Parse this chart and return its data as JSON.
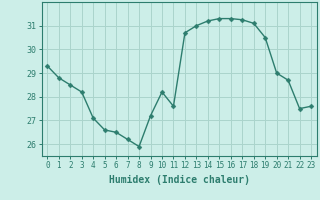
{
  "x": [
    0,
    1,
    2,
    3,
    4,
    5,
    6,
    7,
    8,
    9,
    10,
    11,
    12,
    13,
    14,
    15,
    16,
    17,
    18,
    19,
    20,
    21,
    22,
    23
  ],
  "y": [
    29.3,
    28.8,
    28.5,
    28.2,
    27.1,
    26.6,
    26.5,
    26.2,
    25.9,
    27.2,
    28.2,
    27.6,
    30.7,
    31.0,
    31.2,
    31.3,
    31.3,
    31.25,
    31.1,
    30.5,
    29.0,
    28.7,
    27.5,
    27.6
  ],
  "xlabel": "Humidex (Indice chaleur)",
  "line_color": "#2d7d6e",
  "marker": "D",
  "marker_size": 2.5,
  "bg_color": "#cceee8",
  "grid_color": "#aad4cc",
  "xlim": [
    -0.5,
    23.5
  ],
  "ylim": [
    25.5,
    32.0
  ],
  "yticks": [
    26,
    27,
    28,
    29,
    30,
    31
  ],
  "xticks": [
    0,
    1,
    2,
    3,
    4,
    5,
    6,
    7,
    8,
    9,
    10,
    11,
    12,
    13,
    14,
    15,
    16,
    17,
    18,
    19,
    20,
    21,
    22,
    23
  ],
  "spine_color": "#2d7d6e",
  "tick_color": "#2d7d6e",
  "label_color": "#2d7d6e",
  "tick_fontsize": 5.5,
  "ylabel_fontsize": 6.0,
  "xlabel_fontsize": 7.0
}
